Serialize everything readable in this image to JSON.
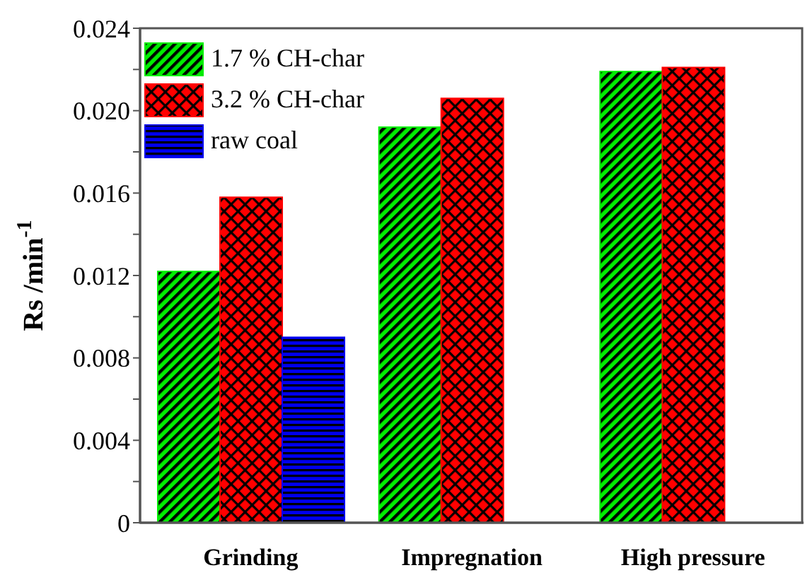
{
  "chart_data": {
    "type": "bar",
    "ylabel": "Rs /min$^{-1}$",
    "categories": [
      "Grinding",
      "Impregnation",
      "High pressure"
    ],
    "series": [
      {
        "name": "1.7 % CH-char",
        "color": "#00ee00",
        "values": [
          0.0122,
          0.0192,
          0.0219
        ]
      },
      {
        "name": "3.2 % CH-char",
        "color": "#ff0000",
        "values": [
          0.0158,
          0.0206,
          0.0221
        ]
      },
      {
        "name": "raw coal",
        "color": "#0000ee",
        "values": [
          0.009,
          null,
          null
        ]
      }
    ],
    "ylim": [
      0,
      0.024
    ],
    "yticks": [
      0,
      {
        "value": 0.002,
        "label": null
      },
      0.004,
      {
        "value": 0.006,
        "label": null
      },
      0.008,
      {
        "value": 0.01,
        "label": null
      },
      0.012,
      {
        "value": 0.014,
        "label": null
      },
      0.016,
      {
        "value": 0.018,
        "label": null
      },
      {
        "value": 0.02,
        "label": "0.020"
      },
      {
        "value": 0.022,
        "label": null
      },
      0.024
    ],
    "legend": "top left"
  }
}
